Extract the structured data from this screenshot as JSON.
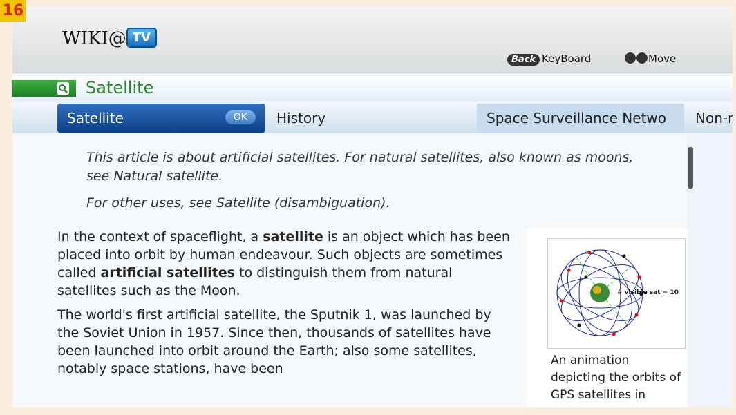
{
  "badge": "16",
  "header": {
    "logo_text": "WIKI@",
    "logo_badge": "TV",
    "hints": [
      {
        "key": "Back",
        "label": "KeyBoard"
      },
      {
        "label": "Move"
      }
    ]
  },
  "search": {
    "query": "Satellite"
  },
  "tabs": [
    {
      "label": "Satellite",
      "ok": "OK"
    },
    {
      "label": "History"
    },
    {
      "label": "Space Surveillance Netwo"
    },
    {
      "label": "Non-r"
    }
  ],
  "article": {
    "hatnotes": [
      "This article is about artificial satellites. For natural satellites, also known as moons, see Natural satellite.",
      "For other uses, see Satellite (disambiguation)."
    ],
    "paragraphs": [
      [
        {
          "text": "In the context of spaceflight, a ",
          "bold": false
        },
        {
          "text": "satellite",
          "bold": true
        },
        {
          "text": " is an object which has been placed into orbit by human endeavour. Such objects are sometimes called ",
          "bold": false
        },
        {
          "text": "artificial satellites",
          "bold": true
        },
        {
          "text": " to distinguish them from natural satellites such as the Moon.",
          "bold": false
        }
      ],
      [
        {
          "text": "The world's first artificial satellite, the Sputnik 1, was launched by the Soviet Union in 1957. Since then, thousands of satellites have been launched into orbit around the Earth; also some satellites, notably space stations, have been",
          "bold": false
        }
      ]
    ],
    "figure": {
      "image_label": "# visible sat = 10",
      "caption": "An animation depicting the orbits of GPS satellites in"
    }
  }
}
